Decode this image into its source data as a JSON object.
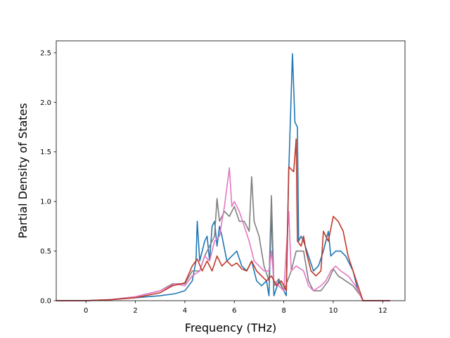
{
  "chart_data": {
    "type": "line",
    "title": "",
    "xlabel": "Frequency (THz)",
    "ylabel": "Partial Density of States",
    "xlim": [
      -1.2,
      12.9
    ],
    "ylim": [
      0.0,
      2.62
    ],
    "xticks": [
      "0",
      "2",
      "4",
      "6",
      "8",
      "10",
      "12"
    ],
    "xtick_values": [
      0,
      2,
      4,
      6,
      8,
      10,
      12
    ],
    "yticks": [
      "0.0",
      "0.5",
      "1.0",
      "1.5",
      "2.0",
      "2.5"
    ],
    "ytick_values": [
      0.0,
      0.5,
      1.0,
      1.5,
      2.0,
      2.5
    ],
    "grid": false,
    "legend": "none",
    "series": [
      {
        "color": "#1f77b4",
        "points": [
          [
            -1.2,
            0
          ],
          [
            0,
            0
          ],
          [
            1,
            0.01
          ],
          [
            2,
            0.03
          ],
          [
            3,
            0.05
          ],
          [
            3.6,
            0.07
          ],
          [
            4,
            0.1
          ],
          [
            4.3,
            0.2
          ],
          [
            4.45,
            0.4
          ],
          [
            4.5,
            0.8
          ],
          [
            4.6,
            0.4
          ],
          [
            4.8,
            0.6
          ],
          [
            4.9,
            0.65
          ],
          [
            5.0,
            0.4
          ],
          [
            5.1,
            0.75
          ],
          [
            5.2,
            0.8
          ],
          [
            5.3,
            0.55
          ],
          [
            5.4,
            0.75
          ],
          [
            5.5,
            0.65
          ],
          [
            5.7,
            0.4
          ],
          [
            5.9,
            0.45
          ],
          [
            6.1,
            0.5
          ],
          [
            6.3,
            0.35
          ],
          [
            6.5,
            0.3
          ],
          [
            6.7,
            0.4
          ],
          [
            6.9,
            0.2
          ],
          [
            7.1,
            0.15
          ],
          [
            7.3,
            0.2
          ],
          [
            7.4,
            0.05
          ],
          [
            7.5,
            0.9
          ],
          [
            7.6,
            0.05
          ],
          [
            7.8,
            0.2
          ],
          [
            8.0,
            0.1
          ],
          [
            8.1,
            0.05
          ],
          [
            8.2,
            1.3
          ],
          [
            8.35,
            2.49
          ],
          [
            8.45,
            1.8
          ],
          [
            8.55,
            1.75
          ],
          [
            8.6,
            0.6
          ],
          [
            8.7,
            0.65
          ],
          [
            8.8,
            0.6
          ],
          [
            9.0,
            0.45
          ],
          [
            9.2,
            0.3
          ],
          [
            9.4,
            0.35
          ],
          [
            9.6,
            0.5
          ],
          [
            9.8,
            0.7
          ],
          [
            9.9,
            0.45
          ],
          [
            10.1,
            0.5
          ],
          [
            10.3,
            0.5
          ],
          [
            10.5,
            0.45
          ],
          [
            10.8,
            0.3
          ],
          [
            11.0,
            0.1
          ],
          [
            11.2,
            0
          ],
          [
            12.3,
            0
          ]
        ]
      },
      {
        "color": "#7f7f7f",
        "points": [
          [
            -1.2,
            0
          ],
          [
            0,
            0
          ],
          [
            1,
            0.01
          ],
          [
            2,
            0.04
          ],
          [
            3,
            0.1
          ],
          [
            3.5,
            0.17
          ],
          [
            4,
            0.17
          ],
          [
            4.3,
            0.3
          ],
          [
            4.6,
            0.3
          ],
          [
            4.8,
            0.45
          ],
          [
            5.0,
            0.55
          ],
          [
            5.2,
            0.65
          ],
          [
            5.3,
            1.03
          ],
          [
            5.4,
            0.8
          ],
          [
            5.6,
            0.9
          ],
          [
            5.8,
            0.85
          ],
          [
            6.0,
            0.95
          ],
          [
            6.2,
            0.8
          ],
          [
            6.4,
            0.8
          ],
          [
            6.6,
            0.7
          ],
          [
            6.7,
            1.25
          ],
          [
            6.8,
            0.8
          ],
          [
            7.0,
            0.65
          ],
          [
            7.2,
            0.35
          ],
          [
            7.4,
            0.2
          ],
          [
            7.5,
            1.06
          ],
          [
            7.6,
            0.15
          ],
          [
            7.8,
            0.22
          ],
          [
            8.0,
            0.1
          ],
          [
            8.3,
            0.3
          ],
          [
            8.5,
            0.5
          ],
          [
            8.8,
            0.5
          ],
          [
            9.0,
            0.2
          ],
          [
            9.2,
            0.1
          ],
          [
            9.5,
            0.1
          ],
          [
            9.8,
            0.2
          ],
          [
            10.0,
            0.32
          ],
          [
            10.2,
            0.25
          ],
          [
            10.5,
            0.2
          ],
          [
            10.8,
            0.15
          ],
          [
            11.1,
            0.05
          ],
          [
            11.2,
            0
          ],
          [
            12.3,
            0
          ]
        ]
      },
      {
        "color": "#e377c2",
        "points": [
          [
            -1.2,
            0
          ],
          [
            0,
            0
          ],
          [
            1,
            0.01
          ],
          [
            2,
            0.04
          ],
          [
            3,
            0.1
          ],
          [
            3.6,
            0.17
          ],
          [
            4,
            0.15
          ],
          [
            4.3,
            0.25
          ],
          [
            4.6,
            0.3
          ],
          [
            4.8,
            0.45
          ],
          [
            5.0,
            0.4
          ],
          [
            5.2,
            0.6
          ],
          [
            5.4,
            0.65
          ],
          [
            5.6,
            0.95
          ],
          [
            5.8,
            1.34
          ],
          [
            5.9,
            0.95
          ],
          [
            6.0,
            1.0
          ],
          [
            6.2,
            0.9
          ],
          [
            6.4,
            0.75
          ],
          [
            6.6,
            0.6
          ],
          [
            6.8,
            0.4
          ],
          [
            7.0,
            0.35
          ],
          [
            7.2,
            0.3
          ],
          [
            7.4,
            0.3
          ],
          [
            7.5,
            0.5
          ],
          [
            7.6,
            0.2
          ],
          [
            7.8,
            0.15
          ],
          [
            8.0,
            0.1
          ],
          [
            8.2,
            0.9
          ],
          [
            8.3,
            0.3
          ],
          [
            8.5,
            0.35
          ],
          [
            8.8,
            0.3
          ],
          [
            9.0,
            0.15
          ],
          [
            9.2,
            0.1
          ],
          [
            9.5,
            0.15
          ],
          [
            9.7,
            0.2
          ],
          [
            9.9,
            0.3
          ],
          [
            10.1,
            0.35
          ],
          [
            10.3,
            0.3
          ],
          [
            10.6,
            0.25
          ],
          [
            10.9,
            0.15
          ],
          [
            11.2,
            0
          ],
          [
            12.3,
            0
          ]
        ]
      },
      {
        "color": "#c0392b",
        "points": [
          [
            -1.2,
            0
          ],
          [
            0,
            0
          ],
          [
            1,
            0.01
          ],
          [
            2,
            0.03
          ],
          [
            3,
            0.08
          ],
          [
            3.5,
            0.15
          ],
          [
            4,
            0.18
          ],
          [
            4.3,
            0.35
          ],
          [
            4.5,
            0.42
          ],
          [
            4.7,
            0.3
          ],
          [
            4.9,
            0.4
          ],
          [
            5.1,
            0.3
          ],
          [
            5.3,
            0.45
          ],
          [
            5.5,
            0.35
          ],
          [
            5.7,
            0.4
          ],
          [
            5.9,
            0.35
          ],
          [
            6.1,
            0.38
          ],
          [
            6.3,
            0.32
          ],
          [
            6.5,
            0.3
          ],
          [
            6.7,
            0.4
          ],
          [
            6.9,
            0.3
          ],
          [
            7.1,
            0.25
          ],
          [
            7.3,
            0.2
          ],
          [
            7.5,
            0.25
          ],
          [
            7.7,
            0.15
          ],
          [
            7.9,
            0.2
          ],
          [
            8.1,
            0.1
          ],
          [
            8.2,
            1.35
          ],
          [
            8.4,
            1.3
          ],
          [
            8.5,
            1.63
          ],
          [
            8.55,
            0.6
          ],
          [
            8.7,
            0.55
          ],
          [
            8.8,
            0.65
          ],
          [
            8.9,
            0.5
          ],
          [
            9.1,
            0.3
          ],
          [
            9.3,
            0.25
          ],
          [
            9.5,
            0.3
          ],
          [
            9.6,
            0.7
          ],
          [
            9.8,
            0.6
          ],
          [
            10.0,
            0.85
          ],
          [
            10.2,
            0.8
          ],
          [
            10.4,
            0.7
          ],
          [
            10.6,
            0.45
          ],
          [
            10.8,
            0.3
          ],
          [
            11.0,
            0.15
          ],
          [
            11.2,
            0
          ],
          [
            12.3,
            0
          ]
        ]
      }
    ]
  }
}
